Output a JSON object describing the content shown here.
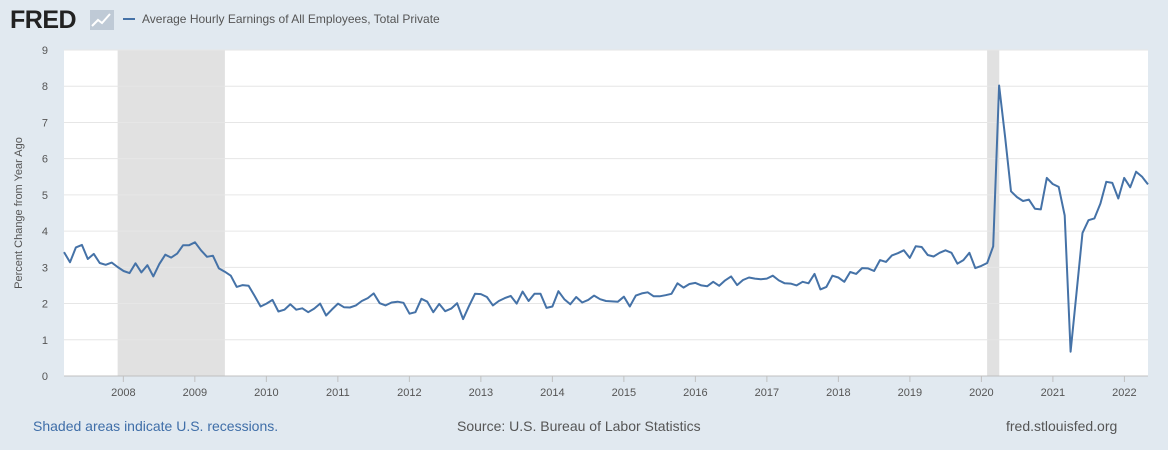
{
  "header": {
    "logo_text": "FRED",
    "series_title": "Average Hourly Earnings of All Employees, Total Private",
    "series_color": "#4572a7"
  },
  "chart_data": {
    "type": "line",
    "title": "Average Hourly Earnings of All Employees, Total Private",
    "xlabel": "",
    "ylabel": "Percent Change from Year Ago",
    "ylim": [
      0,
      9
    ],
    "yticks": [
      "0",
      "1",
      "2",
      "3",
      "4",
      "5",
      "6",
      "7",
      "8",
      "9"
    ],
    "xticks": [
      "2008",
      "2009",
      "2010",
      "2011",
      "2012",
      "2013",
      "2014",
      "2015",
      "2016",
      "2017",
      "2018",
      "2019",
      "2020",
      "2021",
      "2022"
    ],
    "xlim": [
      2007.17,
      2022.33
    ],
    "recessions": [
      [
        2007.92,
        2009.42
      ],
      [
        2020.08,
        2020.25
      ]
    ],
    "series": [
      {
        "name": "Average Hourly Earnings of All Employees, Total Private",
        "x_start": 2007.17,
        "step": 0.0833,
        "values": [
          3.42,
          3.14,
          3.55,
          3.62,
          3.23,
          3.37,
          3.12,
          3.07,
          3.13,
          3.01,
          2.9,
          2.84,
          3.11,
          2.86,
          3.06,
          2.75,
          3.09,
          3.35,
          3.27,
          3.38,
          3.61,
          3.61,
          3.69,
          3.47,
          3.29,
          3.32,
          2.97,
          2.88,
          2.77,
          2.46,
          2.51,
          2.49,
          2.21,
          1.92,
          2.0,
          2.1,
          1.78,
          1.83,
          1.98,
          1.83,
          1.87,
          1.76,
          1.86,
          2.0,
          1.67,
          1.84,
          2.0,
          1.9,
          1.89,
          1.95,
          2.07,
          2.15,
          2.28,
          2.01,
          1.95,
          2.03,
          2.05,
          2.02,
          1.72,
          1.76,
          2.13,
          2.05,
          1.76,
          1.99,
          1.79,
          1.86,
          2.01,
          1.57,
          1.93,
          2.27,
          2.26,
          2.18,
          1.95,
          2.07,
          2.15,
          2.21,
          2.0,
          2.33,
          2.07,
          2.27,
          2.27,
          1.88,
          1.92,
          2.34,
          2.12,
          1.98,
          2.18,
          2.03,
          2.1,
          2.22,
          2.12,
          2.07,
          2.06,
          2.05,
          2.19,
          1.92,
          2.22,
          2.28,
          2.31,
          2.2,
          2.2,
          2.23,
          2.27,
          2.56,
          2.44,
          2.54,
          2.57,
          2.5,
          2.48,
          2.6,
          2.49,
          2.64,
          2.75,
          2.51,
          2.65,
          2.72,
          2.69,
          2.67,
          2.69,
          2.77,
          2.64,
          2.56,
          2.55,
          2.5,
          2.6,
          2.56,
          2.82,
          2.39,
          2.46,
          2.77,
          2.72,
          2.6,
          2.87,
          2.82,
          2.98,
          2.97,
          2.9,
          3.2,
          3.15,
          3.33,
          3.39,
          3.47,
          3.26,
          3.58,
          3.56,
          3.34,
          3.3,
          3.4,
          3.47,
          3.4,
          3.1,
          3.2,
          3.4,
          2.98,
          3.04,
          3.12,
          3.58,
          8.02,
          6.6,
          5.1,
          4.94,
          4.83,
          4.87,
          4.62,
          4.6,
          5.47,
          5.3,
          5.22,
          4.43,
          0.67,
          2.32,
          3.95,
          4.3,
          4.35,
          4.76,
          5.36,
          5.33,
          4.9,
          5.47,
          5.21,
          5.64,
          5.5,
          5.29
        ]
      }
    ]
  },
  "footer": {
    "recession_note": "Shaded areas indicate U.S. recessions.",
    "source": "Source: U.S. Bureau of Labor Statistics",
    "site": "fred.stlouisfed.org"
  }
}
